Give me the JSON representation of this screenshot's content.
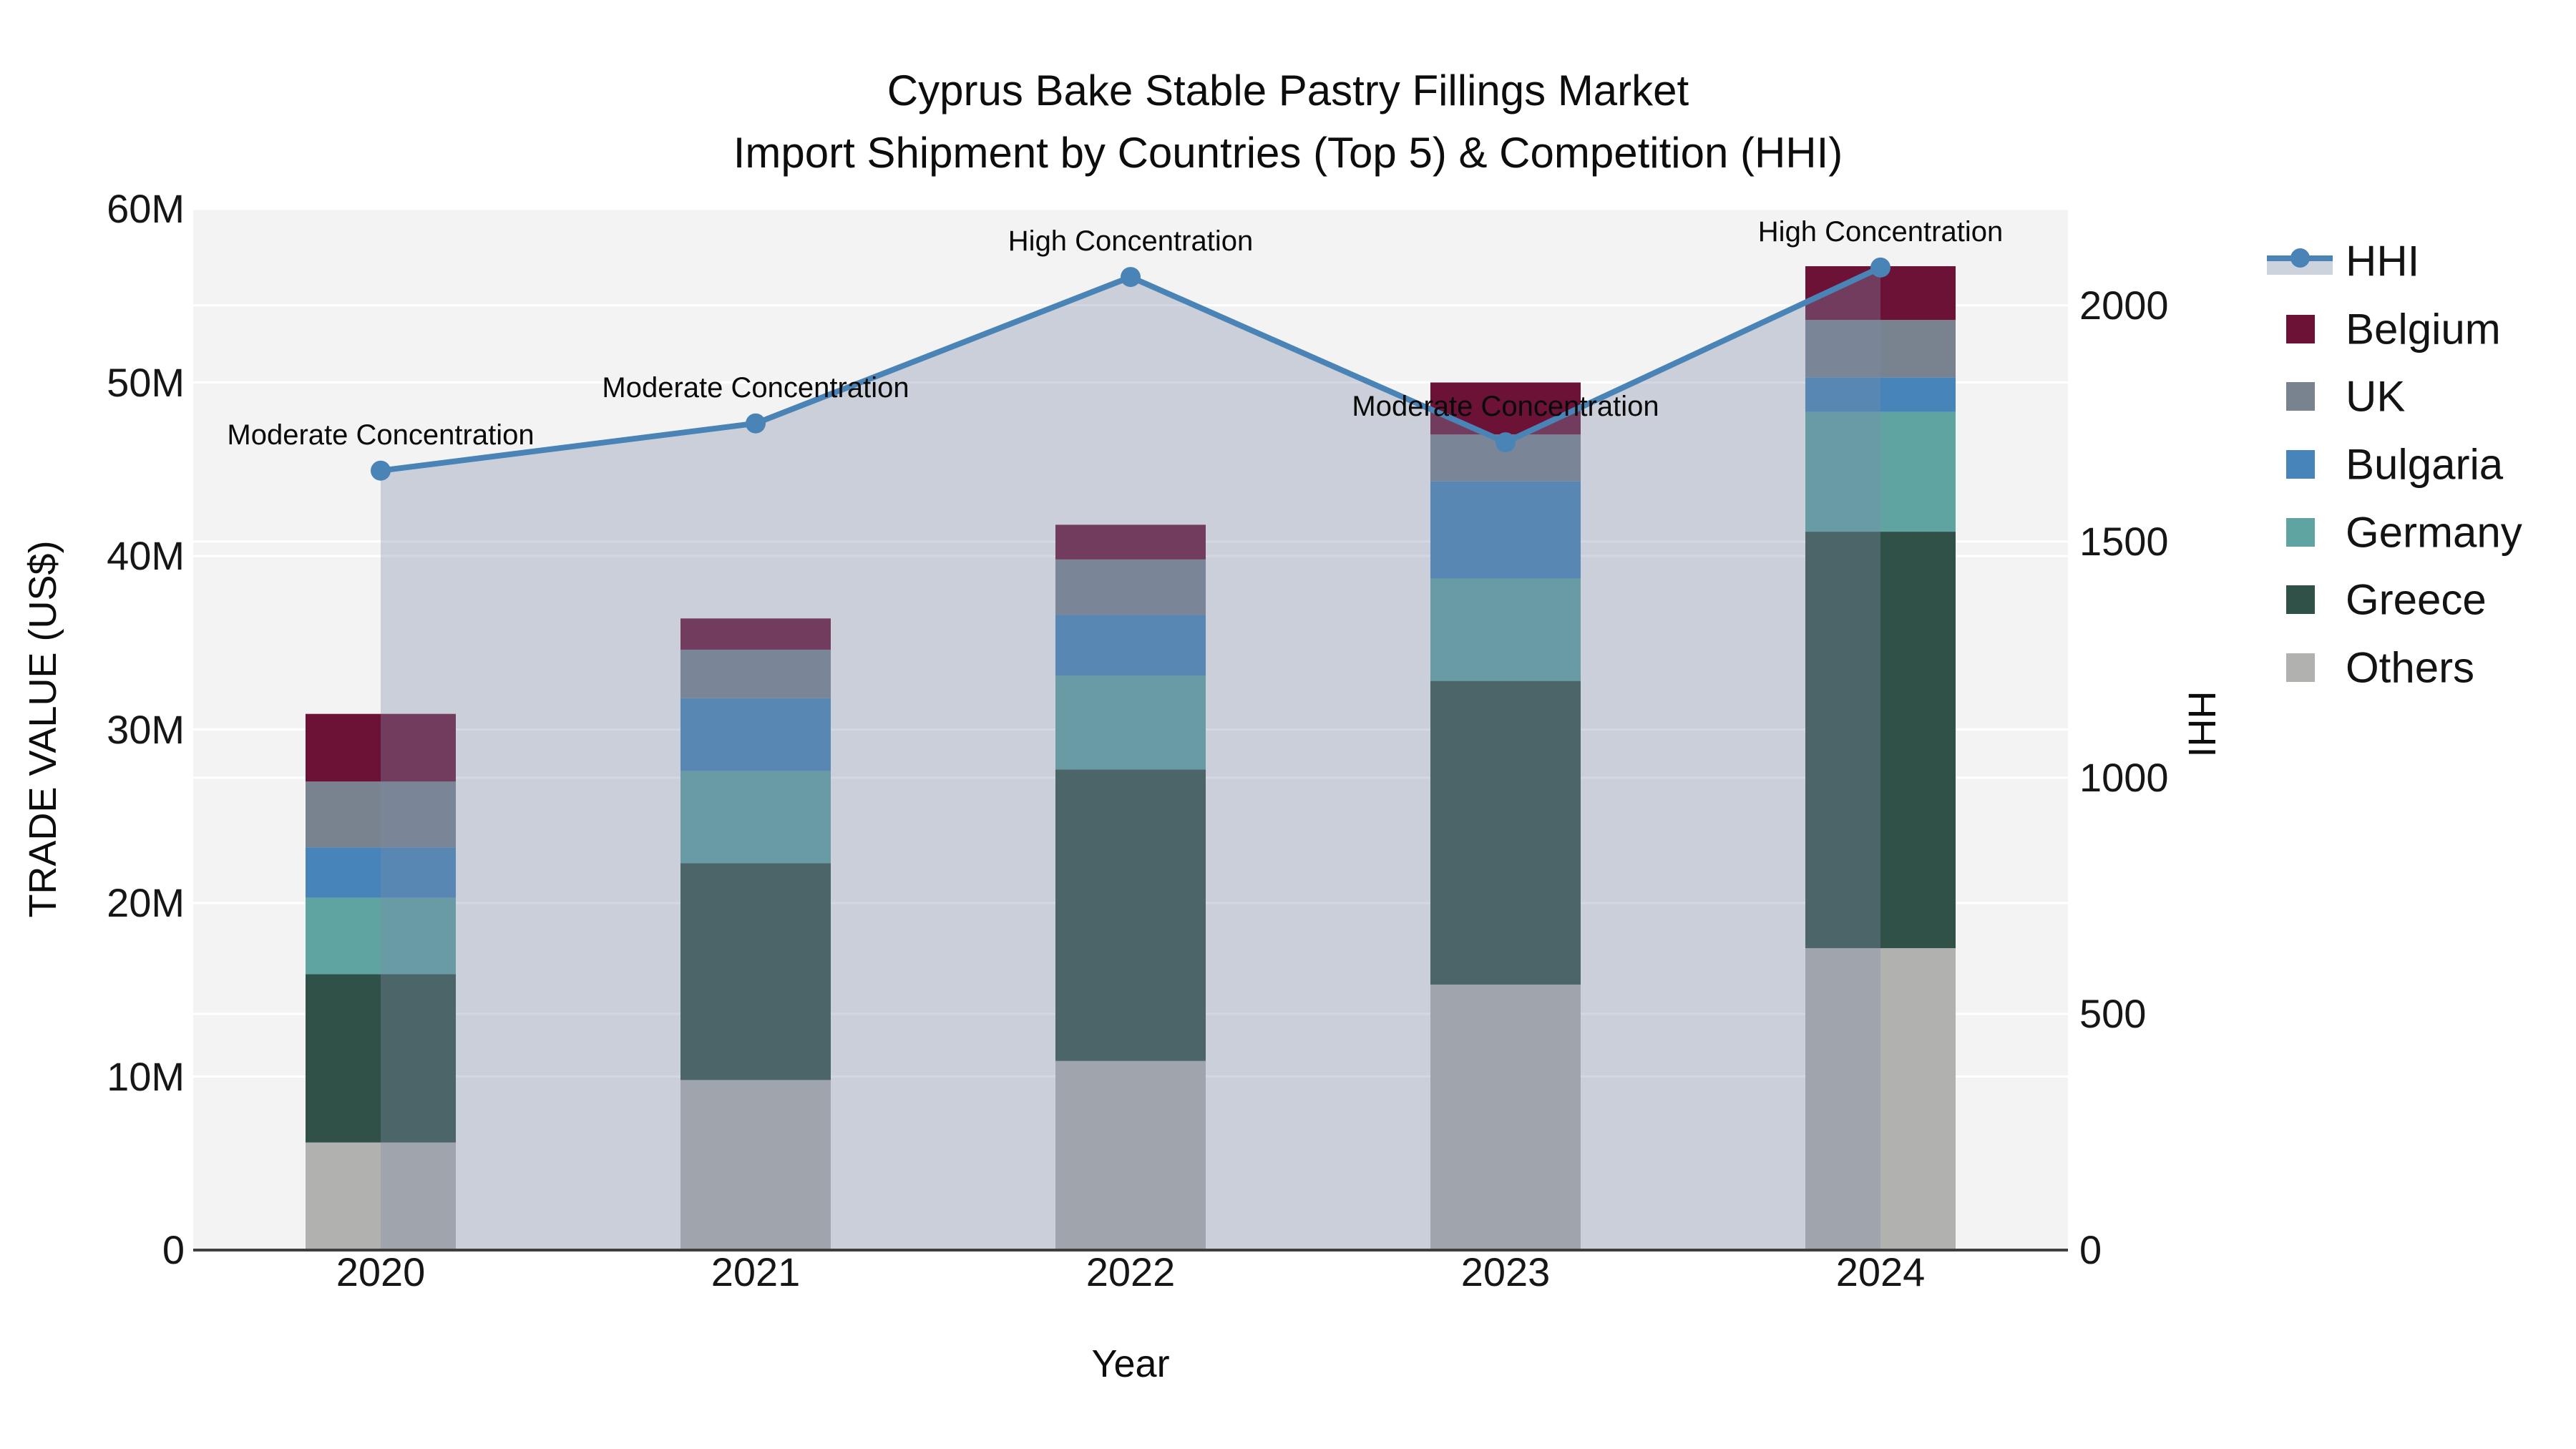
{
  "title": {
    "line1": "Cyprus Bake Stable Pastry Fillings Market",
    "line2": "Import Shipment by Countries (Top 5) & Competition (HHI)"
  },
  "axes": {
    "left": {
      "title": "TRADE VALUE (US$)",
      "tick_labels": [
        "0",
        "10M",
        "20M",
        "30M",
        "40M",
        "50M",
        "60M"
      ],
      "tick_values": [
        0,
        10,
        20,
        30,
        40,
        50,
        60
      ],
      "max": 60,
      "unit": "M US$"
    },
    "right": {
      "title": "HHI",
      "tick_labels": [
        "0",
        "500",
        "1000",
        "1500",
        "2000"
      ],
      "tick_values": [
        0,
        500,
        1000,
        1500,
        2000
      ],
      "max": 2204
    },
    "x": {
      "title": "Year",
      "tick_labels": [
        "2020",
        "2021",
        "2022",
        "2023",
        "2024"
      ]
    }
  },
  "legend": [
    {
      "label": "HHI",
      "type": "line",
      "color": "#4A84B6",
      "band": "#CDD3DD"
    },
    {
      "label": "Belgium",
      "type": "square",
      "color": "#6B1236"
    },
    {
      "label": "UK",
      "type": "square",
      "color": "#78838F"
    },
    {
      "label": "Bulgaria",
      "type": "square",
      "color": "#4684B9"
    },
    {
      "label": "Germany",
      "type": "square",
      "color": "#5FA4A1"
    },
    {
      "label": "Greece",
      "type": "square",
      "color": "#305148"
    },
    {
      "label": "Others",
      "type": "square",
      "color": "#B1B1AF"
    }
  ],
  "colors": {
    "plot_bg": "#F3F3F3",
    "grid": "#FFFFFF",
    "axis_line": "#3F3F3F",
    "hhi_line": "#4A84B6",
    "hhi_area_overlay": "rgba(125,140,170,0.35)"
  },
  "chart_data": {
    "type": "bar",
    "subtype": "stacked-bars-with-line",
    "title": "Cyprus Bake Stable Pastry Fillings Market — Import Shipment by Countries (Top 5) & Competition (HHI)",
    "categories": [
      "2020",
      "2021",
      "2022",
      "2023",
      "2024"
    ],
    "xlabel": "Year",
    "ylabel": "TRADE VALUE (US$)",
    "y2label": "HHI",
    "ylim_millions": [
      0,
      60
    ],
    "y2lim": [
      0,
      2204
    ],
    "grid": true,
    "legend_position": "right",
    "values_unit": "million US$",
    "series": [
      {
        "name": "Others",
        "color": "#B1B1AF",
        "values": [
          6.2,
          9.8,
          10.9,
          15.3,
          17.4
        ]
      },
      {
        "name": "Greece",
        "color": "#305148",
        "values": [
          9.7,
          12.5,
          16.8,
          17.5,
          24.0
        ]
      },
      {
        "name": "Germany",
        "color": "#5FA4A1",
        "values": [
          4.4,
          5.3,
          5.4,
          5.9,
          6.9
        ]
      },
      {
        "name": "Bulgaria",
        "color": "#4684B9",
        "values": [
          2.9,
          4.2,
          3.5,
          5.6,
          2.0
        ]
      },
      {
        "name": "UK",
        "color": "#78838F",
        "values": [
          3.8,
          2.8,
          3.2,
          2.7,
          3.3
        ]
      },
      {
        "name": "Belgium",
        "color": "#6B1236",
        "values": [
          3.9,
          1.8,
          2.0,
          3.0,
          3.1
        ]
      }
    ],
    "stack_totals_millions": [
      30.9,
      36.4,
      41.8,
      50.0,
      56.7
    ],
    "line_series": {
      "name": "HHI",
      "axis": "right",
      "color": "#4A84B6",
      "values": [
        1650,
        1750,
        2060,
        1710,
        2080
      ],
      "area_fill": "rgba(125,140,170,0.35)",
      "marker_radius": 14
    },
    "annotations": [
      {
        "x": "2020",
        "text": "Moderate Concentration"
      },
      {
        "x": "2021",
        "text": "Moderate Concentration"
      },
      {
        "x": "2022",
        "text": "High Concentration"
      },
      {
        "x": "2023",
        "text": "Moderate Concentration"
      },
      {
        "x": "2024",
        "text": "High Concentration"
      }
    ]
  }
}
